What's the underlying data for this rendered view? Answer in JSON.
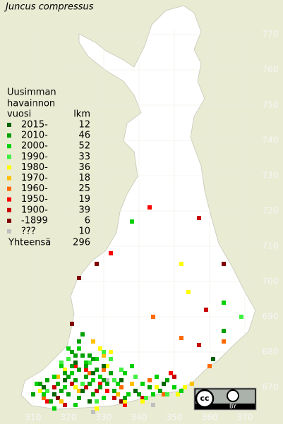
{
  "header": {
    "title": "Juncus compressus"
  },
  "legend": {
    "heading": [
      "Uusimman",
      "havainnon",
      "vuosi"
    ],
    "count_heading": "lkm",
    "entries": [
      {
        "label": "2015-",
        "count": 12,
        "color": "#006400",
        "squares": [
          [
            361,
            678
          ],
          [
            327,
            674
          ],
          [
            319,
            672
          ],
          [
            324,
            669
          ],
          [
            313,
            670
          ],
          [
            339,
            669
          ],
          [
            330,
            676
          ],
          [
            322,
            677
          ],
          [
            335,
            672
          ],
          [
            316,
            668
          ],
          [
            347,
            671
          ],
          [
            326,
            666
          ]
        ]
      },
      {
        "label": "2010-",
        "count": 46,
        "color": "#00a000",
        "squares": [
          [
            324,
            685
          ],
          [
            323,
            683
          ],
          [
            321,
            680
          ],
          [
            322,
            679
          ],
          [
            324,
            679
          ],
          [
            326,
            679
          ],
          [
            327,
            678
          ],
          [
            321,
            676
          ],
          [
            323,
            675
          ],
          [
            325,
            676
          ],
          [
            328,
            675
          ],
          [
            319,
            674
          ],
          [
            320,
            673
          ],
          [
            322,
            672
          ],
          [
            317,
            671
          ],
          [
            312,
            671
          ],
          [
            314,
            672
          ],
          [
            318,
            669
          ],
          [
            320,
            668
          ],
          [
            323,
            667
          ],
          [
            326,
            671
          ],
          [
            329,
            670
          ],
          [
            330,
            672
          ],
          [
            333,
            669
          ],
          [
            336,
            667
          ],
          [
            340,
            668
          ],
          [
            343,
            670
          ],
          [
            346,
            669
          ],
          [
            364,
            686
          ],
          [
            348,
            672
          ],
          [
            310,
            668
          ],
          [
            315,
            666
          ],
          [
            325,
            673
          ],
          [
            332,
            674
          ],
          [
            331,
            671
          ],
          [
            327,
            668
          ]
        ]
      },
      {
        "label": "2000-",
        "count": 52,
        "color": "#00d000",
        "squares": [
          [
            338,
            717
          ],
          [
            364,
            694
          ],
          [
            320,
            681
          ],
          [
            323,
            681
          ],
          [
            325,
            677
          ],
          [
            328,
            678
          ],
          [
            318,
            676
          ],
          [
            321,
            674
          ],
          [
            316,
            673
          ],
          [
            313,
            668
          ],
          [
            311,
            671
          ],
          [
            319,
            670
          ],
          [
            327,
            672
          ],
          [
            329,
            673
          ],
          [
            334,
            671
          ],
          [
            337,
            668
          ],
          [
            341,
            671
          ],
          [
            344,
            668
          ],
          [
            350,
            670
          ],
          [
            352,
            669
          ],
          [
            316,
            664
          ],
          [
            322,
            665
          ],
          [
            330,
            667
          ],
          [
            345,
            673
          ],
          [
            336,
            674
          ],
          [
            338,
            676
          ]
        ]
      },
      {
        "label": "1990-",
        "count": 33,
        "color": "#40f040",
        "squares": [
          [
            369,
            690
          ],
          [
            320,
            678
          ],
          [
            318,
            677
          ],
          [
            326,
            677
          ],
          [
            330,
            680
          ],
          [
            332,
            678
          ],
          [
            324,
            671
          ],
          [
            335,
            675
          ],
          [
            342,
            667
          ],
          [
            339,
            673
          ],
          [
            348,
            668
          ],
          [
            314,
            669
          ],
          [
            328,
            666
          ],
          [
            333,
            672
          ]
        ]
      },
      {
        "label": "1980-",
        "count": 36,
        "color": "#ffff00",
        "squares": [
          [
            352,
            705
          ],
          [
            354,
            697
          ],
          [
            329,
            681
          ],
          [
            332,
            680
          ],
          [
            319,
            675
          ],
          [
            322,
            670
          ],
          [
            331,
            676
          ],
          [
            345,
            670
          ],
          [
            351,
            668
          ],
          [
            328,
            664
          ],
          [
            336,
            666
          ],
          [
            341,
            666
          ],
          [
            312,
            669
          ],
          [
            353,
            670
          ]
        ]
      },
      {
        "label": "1970-",
        "count": 18,
        "color": "#ffc000",
        "squares": [
          [
            327,
            683
          ],
          [
            330,
            679
          ],
          [
            317,
            673
          ],
          [
            323,
            669
          ],
          [
            338,
            671
          ],
          [
            355,
            671
          ],
          [
            334,
            668
          ],
          [
            318,
            666
          ]
        ]
      },
      {
        "label": "1960-",
        "count": 25,
        "color": "#ff6a00",
        "squares": [
          [
            344,
            690
          ],
          [
            352,
            684
          ],
          [
            364,
            683
          ],
          [
            326,
            674
          ],
          [
            330,
            675
          ],
          [
            360,
            676
          ],
          [
            313,
            667
          ],
          [
            335,
            670
          ],
          [
            347,
            668
          ],
          [
            343,
            672
          ]
        ]
      },
      {
        "label": "1950-",
        "count": 19,
        "color": "#ff0000",
        "squares": [
          [
            343,
            721
          ],
          [
            332,
            708
          ],
          [
            322,
            676
          ],
          [
            325,
            675
          ],
          [
            329,
            671
          ],
          [
            314,
            666
          ],
          [
            336,
            665
          ],
          [
            349,
            674
          ],
          [
            331,
            669
          ]
        ]
      },
      {
        "label": "1900-",
        "count": 39,
        "color": "#c80000",
        "squares": [
          [
            357,
            718
          ],
          [
            359,
            692
          ],
          [
            357,
            682
          ],
          [
            325,
            670
          ],
          [
            321,
            671
          ],
          [
            328,
            669
          ],
          [
            316,
            670
          ],
          [
            333,
            667
          ],
          [
            339,
            669
          ],
          [
            319,
            665
          ],
          [
            341,
            667
          ],
          [
            350,
            673
          ]
        ]
      },
      {
        "label": "-1899",
        "count": 6,
        "color": "#800000",
        "squares": [
          [
            328,
            705
          ],
          [
            323,
            701
          ],
          [
            364,
            705
          ],
          [
            321,
            688
          ],
          [
            335,
            666
          ],
          [
            317,
            667
          ]
        ]
      },
      {
        "label": "???",
        "count": 10,
        "color": "#c0c0c0",
        "squares": [
          [
            331,
            672
          ],
          [
            327,
            663
          ],
          [
            344,
            665
          ]
        ]
      }
    ],
    "total_label": "Yhteensä",
    "total": 296
  },
  "axes": {
    "xticks": [
      310,
      320,
      330,
      340,
      350,
      360,
      370
    ],
    "yticks": [
      670,
      680,
      690,
      700,
      710,
      720,
      730,
      740,
      750,
      760,
      770
    ]
  },
  "license": {
    "cc": "cc",
    "by": "BY"
  }
}
